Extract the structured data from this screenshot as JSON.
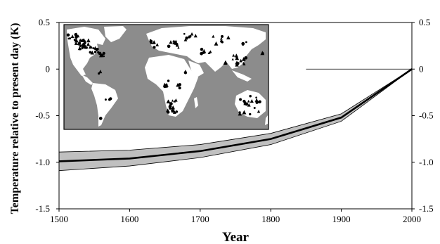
{
  "chart_data": {
    "type": "line",
    "title": "",
    "xlabel": "Year",
    "ylabel": "Temperature relative to present day (K)",
    "xlim": [
      1500,
      2000
    ],
    "ylim": [
      -1.5,
      0.5
    ],
    "x_ticks": [
      1500,
      1600,
      1700,
      1800,
      1900,
      2000
    ],
    "x_tick_labels": [
      "1500",
      "1600",
      "1700",
      "1800",
      "1900",
      "2000"
    ],
    "y_ticks": [
      -1.5,
      -1.0,
      -0.5,
      0,
      0.5
    ],
    "y_tick_labels": [
      "-1.5",
      "-1.0",
      "-0.5",
      "0",
      "0.5"
    ],
    "reference_line_y": 0,
    "grid": false,
    "series": [
      {
        "x": [
          1500,
          1600,
          1700,
          1800,
          1900,
          2000
        ],
        "values": [
          -0.99,
          -0.96,
          -0.88,
          -0.75,
          -0.52,
          0.0
        ],
        "upper": [
          -0.89,
          -0.87,
          -0.81,
          -0.69,
          -0.48,
          0.0
        ],
        "lower": [
          -1.09,
          -1.04,
          -0.95,
          -0.81,
          -0.56,
          0.0
        ],
        "color": "#000000",
        "band_color": "#c0c0c0"
      }
    ],
    "inset_map": {
      "ocean_color": "#8c8c8c",
      "land_color": "#ffffff",
      "marker_color": "#000000"
    }
  }
}
